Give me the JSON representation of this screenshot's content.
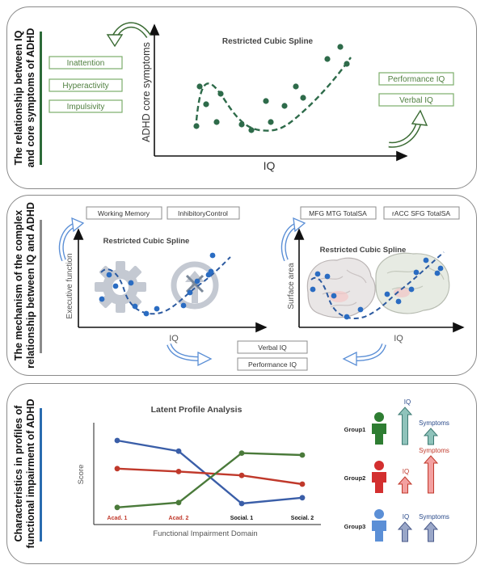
{
  "panel1": {
    "title_line1": "The relationship between IQ",
    "title_line2": "and core symptoms of ADHD",
    "chart_title": "Restricted Cubic Spline",
    "x_label": "IQ",
    "y_label": "ADHD core symptoms",
    "symptoms": [
      "Inattention",
      "Hyperactivity",
      "Impulsivity"
    ],
    "iq_measures": [
      "Performance IQ",
      "Verbal  IQ"
    ],
    "accent_color": "#2e6b3a"
  },
  "panel2": {
    "title_line1": "The mechanism of the complex",
    "title_line2": "relationship between IQ and ADHD",
    "left_chart_title": "Restricted Cubic Spline",
    "left_y_label": "Executive function",
    "left_x_label": "IQ",
    "right_chart_title": "Restricted Cubic Spline",
    "right_y_label": "Surface area",
    "right_x_label": "IQ",
    "ef_measures": [
      "Working Memory",
      "InhibitoryControl"
    ],
    "sa_measures": [
      "MFG MTG TotalSA",
      "rACC SFG TotalSA"
    ],
    "iq_measures": [
      "Verbal IQ",
      "Performance IQ"
    ],
    "accent_color": "#8c8c8c"
  },
  "panel3": {
    "title_line1": "Characteristics in profiles of",
    "title_line2": "functional impairment of ADHD",
    "accent_color": "#2a6cb0",
    "groups": [
      {
        "label": "Group1",
        "color": "#2e7d32",
        "iq": "IQ",
        "symptoms": "Symptoms"
      },
      {
        "label": "Group2",
        "color": "#d32f2f",
        "iq": "IQ",
        "symptoms": "Symptoms"
      },
      {
        "label": "Group3",
        "color": "#5b8fd6",
        "iq": "IQ",
        "symptoms": "Symptoms"
      }
    ]
  },
  "chart_data": [
    {
      "type": "line",
      "title": "Latent Profile Analysis",
      "xlabel": "Functional Impairment Domain",
      "ylabel": "Score",
      "categories": [
        "Acad. 1",
        "Acad. 2",
        "Social. 1",
        "Social. 2"
      ],
      "category_colors": [
        "#c0392b",
        "#c0392b",
        "#111111",
        "#111111"
      ],
      "ylim": [
        0,
        10
      ],
      "grid": false,
      "series": [
        {
          "color": "#3a5ea8",
          "values": [
            8.5,
            7.4,
            2.0,
            2.6
          ]
        },
        {
          "color": "#c0392b",
          "values": [
            5.6,
            5.3,
            4.9,
            4.0
          ]
        },
        {
          "color": "#4a7a3a",
          "values": [
            1.6,
            2.1,
            7.2,
            7.0
          ]
        }
      ]
    }
  ]
}
